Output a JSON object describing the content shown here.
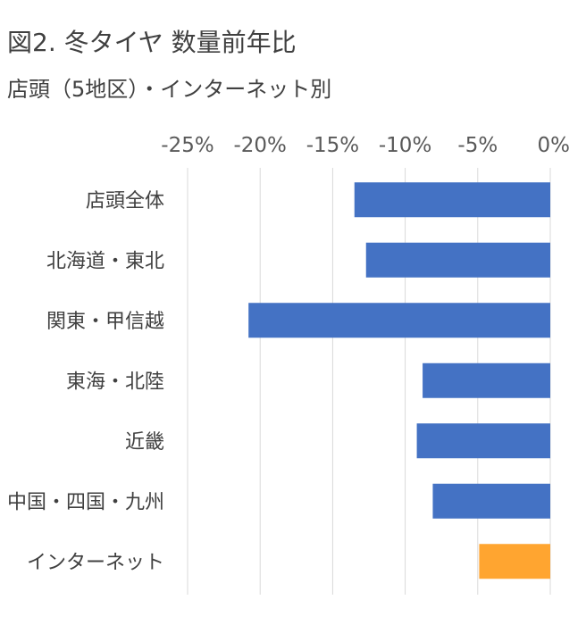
{
  "title": "図2. 冬タイヤ 数量前年比",
  "subtitle": "店頭（5地区）・インターネット別",
  "chart_data": {
    "type": "bar",
    "orientation": "horizontal",
    "title": "図2. 冬タイヤ 数量前年比",
    "subtitle": "店頭（5地区）・インターネット別",
    "xlim": [
      -25,
      0
    ],
    "x_ticks": [
      -25,
      -20,
      -15,
      -10,
      -5,
      0
    ],
    "x_tick_labels": [
      "-25%",
      "-20%",
      "-15%",
      "-10%",
      "-5%",
      "0%"
    ],
    "x_axis_position": "top",
    "grid": true,
    "categories": [
      "店頭全体",
      "北海道・東北",
      "関東・甲信越",
      "東海・北陸",
      "近畿",
      "中国・四国・九州",
      "インターネット"
    ],
    "values": [
      -13.5,
      -12.7,
      -20.8,
      -8.8,
      -9.2,
      -8.1,
      -4.9
    ],
    "colors": [
      "#4472C4",
      "#4472C4",
      "#4472C4",
      "#4472C4",
      "#4472C4",
      "#4472C4",
      "#FFA530"
    ]
  }
}
